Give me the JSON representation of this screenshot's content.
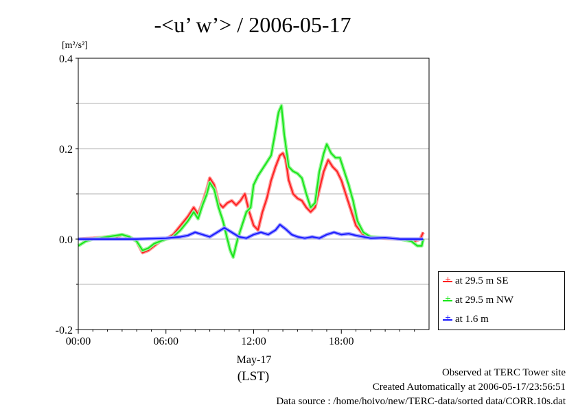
{
  "page": {
    "title": "-<u’ w’> / 2006-05-17",
    "footer_lines": [
      "Observed at TERC Tower site",
      "Created Automatically at 2006-05-17/23:56:51",
      "Data source : /home/hoivo/new/TERC-data/sorted  data/CORR.10s.dat"
    ]
  },
  "chart_data": {
    "type": "line",
    "title": "-<u’ w’> / 2006-05-17",
    "ylabel": "[m²/s²]",
    "xlabel_date": "May-17",
    "xlabel_unit": "(LST)",
    "xlim": [
      0,
      24
    ],
    "ylim": [
      -0.2,
      0.4
    ],
    "x_ticks": [
      0,
      6,
      12,
      18
    ],
    "x_tick_labels": [
      "00:00",
      "06:00",
      "12:00",
      "18:00"
    ],
    "y_ticks": [
      -0.2,
      0.0,
      0.2,
      0.4
    ],
    "y_tick_labels": [
      "-0.2",
      "0.0",
      "0.2",
      "0.4"
    ],
    "grid": "horizontal",
    "legend_position": "bottom-right outside",
    "series": [
      {
        "name": "at 29.5 m SE",
        "color": "#ff2020",
        "points": [
          [
            0,
            0.0
          ],
          [
            1,
            0.002
          ],
          [
            2,
            0.005
          ],
          [
            2.5,
            0.003
          ],
          [
            3,
            0.01
          ],
          [
            3.5,
            0.005
          ],
          [
            4,
            -0.005
          ],
          [
            4.4,
            -0.03
          ],
          [
            4.8,
            -0.025
          ],
          [
            5.2,
            -0.015
          ],
          [
            5.6,
            -0.005
          ],
          [
            6,
            0.0
          ],
          [
            6.5,
            0.01
          ],
          [
            7,
            0.03
          ],
          [
            7.5,
            0.05
          ],
          [
            7.9,
            0.07
          ],
          [
            8.2,
            0.055
          ],
          [
            8.5,
            0.08
          ],
          [
            8.8,
            0.11
          ],
          [
            9.0,
            0.135
          ],
          [
            9.3,
            0.12
          ],
          [
            9.6,
            0.08
          ],
          [
            9.9,
            0.07
          ],
          [
            10.2,
            0.08
          ],
          [
            10.5,
            0.085
          ],
          [
            10.8,
            0.075
          ],
          [
            11.1,
            0.085
          ],
          [
            11.4,
            0.1
          ],
          [
            11.7,
            0.06
          ],
          [
            12,
            0.03
          ],
          [
            12.3,
            0.02
          ],
          [
            12.6,
            0.06
          ],
          [
            12.9,
            0.09
          ],
          [
            13.2,
            0.13
          ],
          [
            13.5,
            0.16
          ],
          [
            13.8,
            0.185
          ],
          [
            14.0,
            0.19
          ],
          [
            14.2,
            0.175
          ],
          [
            14.4,
            0.13
          ],
          [
            14.7,
            0.1
          ],
          [
            15.0,
            0.09
          ],
          [
            15.3,
            0.085
          ],
          [
            15.6,
            0.07
          ],
          [
            15.9,
            0.06
          ],
          [
            16.2,
            0.07
          ],
          [
            16.5,
            0.11
          ],
          [
            16.8,
            0.15
          ],
          [
            17.1,
            0.175
          ],
          [
            17.4,
            0.16
          ],
          [
            17.7,
            0.15
          ],
          [
            18.0,
            0.13
          ],
          [
            18.3,
            0.1
          ],
          [
            18.6,
            0.07
          ],
          [
            19.0,
            0.03
          ],
          [
            19.5,
            0.01
          ],
          [
            20,
            0.005
          ],
          [
            21,
            0.002
          ],
          [
            22,
            0.0
          ],
          [
            23,
            -0.005
          ],
          [
            23.4,
            0.0
          ],
          [
            23.6,
            0.015
          ]
        ]
      },
      {
        "name": "at 29.5 m NW",
        "color": "#19e619",
        "points": [
          [
            0,
            -0.015
          ],
          [
            0.5,
            -0.005
          ],
          [
            1,
            0.0
          ],
          [
            2,
            0.005
          ],
          [
            3,
            0.01
          ],
          [
            3.5,
            0.005
          ],
          [
            4,
            -0.005
          ],
          [
            4.4,
            -0.025
          ],
          [
            4.8,
            -0.02
          ],
          [
            5.2,
            -0.01
          ],
          [
            5.6,
            -0.005
          ],
          [
            6,
            0.0
          ],
          [
            6.5,
            0.005
          ],
          [
            7,
            0.02
          ],
          [
            7.5,
            0.04
          ],
          [
            7.9,
            0.06
          ],
          [
            8.2,
            0.045
          ],
          [
            8.5,
            0.075
          ],
          [
            8.8,
            0.1
          ],
          [
            9.0,
            0.125
          ],
          [
            9.3,
            0.11
          ],
          [
            9.6,
            0.07
          ],
          [
            9.9,
            0.04
          ],
          [
            10.2,
            0.0
          ],
          [
            10.4,
            -0.025
          ],
          [
            10.6,
            -0.04
          ],
          [
            10.9,
            0.0
          ],
          [
            11.2,
            0.03
          ],
          [
            11.5,
            0.06
          ],
          [
            11.8,
            0.07
          ],
          [
            12.0,
            0.12
          ],
          [
            12.3,
            0.14
          ],
          [
            12.6,
            0.155
          ],
          [
            12.9,
            0.17
          ],
          [
            13.2,
            0.185
          ],
          [
            13.5,
            0.24
          ],
          [
            13.7,
            0.28
          ],
          [
            13.9,
            0.295
          ],
          [
            14.1,
            0.23
          ],
          [
            14.4,
            0.16
          ],
          [
            14.7,
            0.15
          ],
          [
            15.0,
            0.145
          ],
          [
            15.3,
            0.135
          ],
          [
            15.6,
            0.1
          ],
          [
            15.9,
            0.07
          ],
          [
            16.2,
            0.08
          ],
          [
            16.5,
            0.15
          ],
          [
            16.8,
            0.19
          ],
          [
            17.0,
            0.21
          ],
          [
            17.3,
            0.19
          ],
          [
            17.6,
            0.18
          ],
          [
            17.9,
            0.18
          ],
          [
            18.2,
            0.15
          ],
          [
            18.5,
            0.12
          ],
          [
            18.8,
            0.085
          ],
          [
            19.1,
            0.04
          ],
          [
            19.5,
            0.015
          ],
          [
            20,
            0.005
          ],
          [
            21,
            0.003
          ],
          [
            22,
            0.0
          ],
          [
            22.8,
            -0.005
          ],
          [
            23.2,
            -0.015
          ],
          [
            23.5,
            -0.015
          ],
          [
            23.6,
            0.0
          ]
        ]
      },
      {
        "name": "at 1.6 m",
        "color": "#1a1aff",
        "points": [
          [
            0,
            0.0
          ],
          [
            2,
            0.0
          ],
          [
            4,
            0.0
          ],
          [
            6,
            0.002
          ],
          [
            7,
            0.005
          ],
          [
            7.5,
            0.008
          ],
          [
            8,
            0.015
          ],
          [
            8.5,
            0.01
          ],
          [
            9,
            0.005
          ],
          [
            9.5,
            0.015
          ],
          [
            10,
            0.025
          ],
          [
            10.5,
            0.015
          ],
          [
            11,
            0.005
          ],
          [
            11.5,
            0.002
          ],
          [
            12,
            0.01
          ],
          [
            12.5,
            0.015
          ],
          [
            13,
            0.01
          ],
          [
            13.5,
            0.02
          ],
          [
            13.8,
            0.032
          ],
          [
            14.2,
            0.022
          ],
          [
            14.6,
            0.01
          ],
          [
            15,
            0.005
          ],
          [
            15.5,
            0.002
          ],
          [
            16,
            0.005
          ],
          [
            16.5,
            0.002
          ],
          [
            17,
            0.01
          ],
          [
            17.5,
            0.015
          ],
          [
            18,
            0.01
          ],
          [
            18.5,
            0.012
          ],
          [
            19,
            0.008
          ],
          [
            19.5,
            0.005
          ],
          [
            20,
            0.002
          ],
          [
            21,
            0.003
          ],
          [
            22,
            0.0
          ],
          [
            23,
            0.0
          ],
          [
            23.6,
            0.0
          ]
        ]
      }
    ]
  }
}
